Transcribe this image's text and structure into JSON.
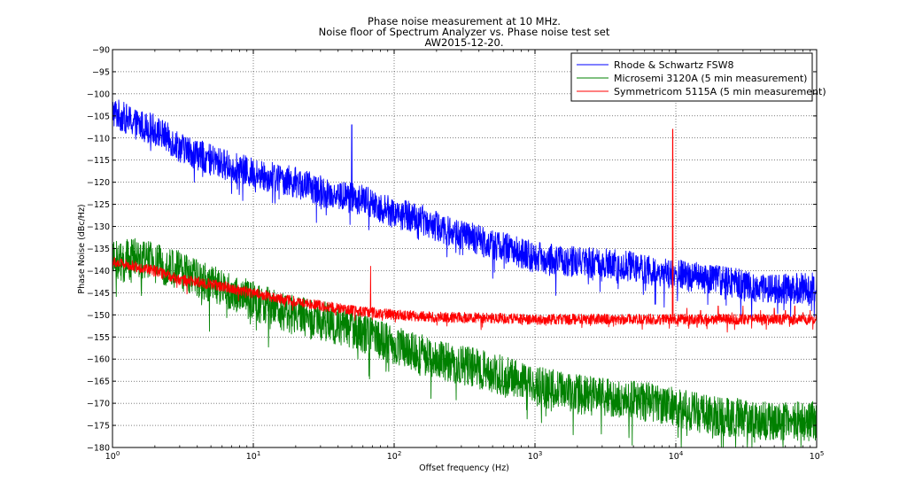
{
  "chart_data": {
    "type": "line",
    "title_lines": [
      "Phase noise measurement at 10 MHz.",
      "Noise floor of Spectrum Analyzer vs. Phase noise test set",
      "AW2015-12-20."
    ],
    "xlabel": "Offset frequency (Hz)",
    "ylabel": "Phase Noise (dBc/Hz)",
    "x_scale": "log",
    "xlim": [
      1,
      100000
    ],
    "ylim": [
      -180,
      -90
    ],
    "x_tick_labels": [
      {
        "base": "10",
        "exp": "0"
      },
      {
        "base": "10",
        "exp": "1"
      },
      {
        "base": "10",
        "exp": "2"
      },
      {
        "base": "10",
        "exp": "3"
      },
      {
        "base": "10",
        "exp": "4"
      },
      {
        "base": "10",
        "exp": "5"
      }
    ],
    "y_ticks": [
      -180,
      -175,
      -170,
      -165,
      -160,
      -155,
      -150,
      -145,
      -140,
      -135,
      -130,
      -125,
      -120,
      -115,
      -110,
      -105,
      -100,
      -95,
      -90
    ],
    "grid": true,
    "legend_position": "top-right",
    "series": [
      {
        "name": "Rhode & Schwartz FSW8",
        "color": "#0000ff",
        "noise_amplitude": 3.5,
        "points": [
          [
            1,
            -104
          ],
          [
            1.5,
            -107
          ],
          [
            2,
            -108
          ],
          [
            3,
            -112
          ],
          [
            5,
            -115
          ],
          [
            10,
            -118
          ],
          [
            20,
            -120
          ],
          [
            30,
            -122
          ],
          [
            40,
            -123
          ],
          [
            60,
            -124
          ],
          [
            100,
            -127
          ],
          [
            150,
            -128
          ],
          [
            200,
            -130
          ],
          [
            300,
            -132
          ],
          [
            500,
            -134
          ],
          [
            1000,
            -137
          ],
          [
            2000,
            -138
          ],
          [
            5000,
            -139
          ],
          [
            10000,
            -141
          ],
          [
            20000,
            -142
          ],
          [
            40000,
            -144
          ],
          [
            100000,
            -144
          ]
        ],
        "spikes": [
          [
            50,
            -107
          ],
          [
            90,
            -124
          ]
        ]
      },
      {
        "name": "Microsemi 3120A (5 min measurement)",
        "color": "#008000",
        "noise_amplitude": 4.5,
        "points": [
          [
            1,
            -138
          ],
          [
            1.5,
            -137
          ],
          [
            2,
            -138
          ],
          [
            3,
            -140
          ],
          [
            5,
            -143
          ],
          [
            10,
            -147
          ],
          [
            20,
            -150
          ],
          [
            50,
            -153
          ],
          [
            100,
            -157
          ],
          [
            200,
            -160
          ],
          [
            500,
            -163
          ],
          [
            1000,
            -166
          ],
          [
            2000,
            -168
          ],
          [
            5000,
            -169
          ],
          [
            10000,
            -171
          ],
          [
            20000,
            -173
          ],
          [
            50000,
            -174
          ],
          [
            100000,
            -174
          ]
        ],
        "spikes": []
      },
      {
        "name": "Symmetricom 5115A (5 min measurement)",
        "color": "#ff0000",
        "noise_amplitude": 1.2,
        "points": [
          [
            1,
            -138
          ],
          [
            2,
            -140
          ],
          [
            3,
            -142
          ],
          [
            5,
            -143
          ],
          [
            10,
            -145
          ],
          [
            20,
            -147
          ],
          [
            50,
            -149
          ],
          [
            100,
            -150
          ],
          [
            200,
            -150.5
          ],
          [
            1000,
            -151
          ],
          [
            10000,
            -151
          ],
          [
            100000,
            -151
          ]
        ],
        "spikes": [
          [
            68,
            -139
          ],
          [
            800,
            -150
          ],
          [
            9500,
            -108
          ],
          [
            12000,
            -148.5
          ],
          [
            15000,
            -149
          ],
          [
            20000,
            -148
          ],
          [
            25000,
            -149.5
          ],
          [
            30000,
            -148
          ],
          [
            40000,
            -149
          ],
          [
            50000,
            -148.5
          ],
          [
            60000,
            -149
          ],
          [
            70000,
            -148
          ],
          [
            80000,
            -149.5
          ],
          [
            90000,
            -149
          ]
        ]
      }
    ]
  }
}
